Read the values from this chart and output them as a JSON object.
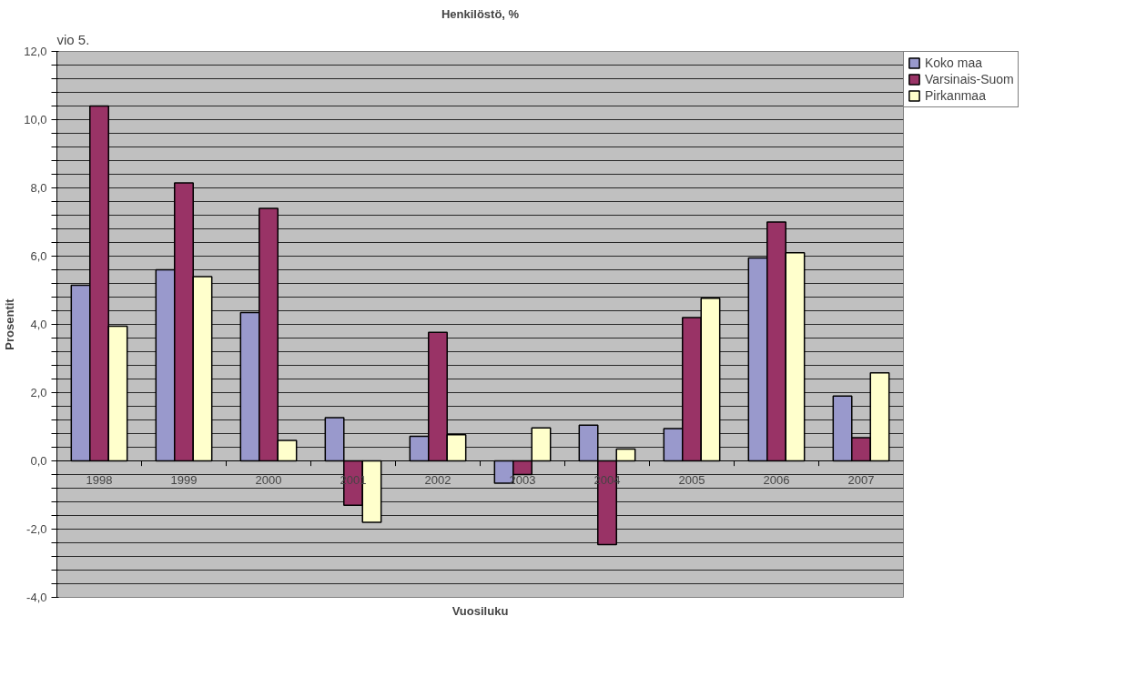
{
  "chart_data": {
    "type": "bar",
    "title": "Henkilöstö, %",
    "xlabel": "Vuosiluku",
    "ylabel": "Prosentit",
    "annotations": [
      "vio 5."
    ],
    "categories": [
      "1998",
      "1999",
      "2000",
      "2001",
      "2002",
      "2003",
      "2004",
      "2005",
      "2006",
      "2007"
    ],
    "series": [
      {
        "name": "Koko maa",
        "color": "#9999cc",
        "values": [
          5.15,
          5.6,
          4.35,
          1.27,
          0.72,
          -0.65,
          1.05,
          0.95,
          5.95,
          1.9
        ]
      },
      {
        "name": "Varsinais-Suom",
        "color": "#993366",
        "values": [
          10.4,
          8.15,
          7.4,
          -1.3,
          3.77,
          -0.4,
          -2.45,
          4.2,
          7.0,
          0.68
        ]
      },
      {
        "name": "Pirkanmaa",
        "color": "#ffffcc",
        "values": [
          3.95,
          5.4,
          0.6,
          -1.8,
          0.77,
          0.97,
          0.35,
          4.77,
          6.1,
          2.58
        ]
      }
    ],
    "ylim": [
      -4,
      12
    ],
    "yticks": [
      {
        "value": -4,
        "label": "-4,0"
      },
      {
        "value": -3.6,
        "label": null
      },
      {
        "value": -3.2,
        "label": null
      },
      {
        "value": -2.8,
        "label": null
      },
      {
        "value": -2.4,
        "label": null
      },
      {
        "value": -2,
        "label": "-2,0"
      },
      {
        "value": -1.6,
        "label": null
      },
      {
        "value": -1.2,
        "label": null
      },
      {
        "value": -0.8,
        "label": null
      },
      {
        "value": -0.4,
        "label": null
      },
      {
        "value": 0,
        "label": "0,0"
      },
      {
        "value": 0.4,
        "label": null
      },
      {
        "value": 0.8,
        "label": null
      },
      {
        "value": 1.2,
        "label": null
      },
      {
        "value": 1.6,
        "label": null
      },
      {
        "value": 2,
        "label": "2,0"
      },
      {
        "value": 2.4,
        "label": null
      },
      {
        "value": 2.8,
        "label": null
      },
      {
        "value": 3.2,
        "label": null
      },
      {
        "value": 3.6,
        "label": null
      },
      {
        "value": 4,
        "label": "4,0"
      },
      {
        "value": 4.4,
        "label": null
      },
      {
        "value": 4.8,
        "label": null
      },
      {
        "value": 5.2,
        "label": null
      },
      {
        "value": 5.6,
        "label": null
      },
      {
        "value": 6,
        "label": "6,0"
      },
      {
        "value": 6.4,
        "label": null
      },
      {
        "value": 6.8,
        "label": null
      },
      {
        "value": 7.2,
        "label": null
      },
      {
        "value": 7.6,
        "label": null
      },
      {
        "value": 8,
        "label": "8,0"
      },
      {
        "value": 8.4,
        "label": null
      },
      {
        "value": 8.8,
        "label": null
      },
      {
        "value": 9.2,
        "label": null
      },
      {
        "value": 9.6,
        "label": null
      },
      {
        "value": 10,
        "label": "10,0"
      },
      {
        "value": 10.4,
        "label": null
      },
      {
        "value": 10.8,
        "label": null
      },
      {
        "value": 11.2,
        "label": null
      },
      {
        "value": 11.6,
        "label": null
      },
      {
        "value": 12,
        "label": "12,0"
      }
    ],
    "grid": "y",
    "legend": "right"
  }
}
